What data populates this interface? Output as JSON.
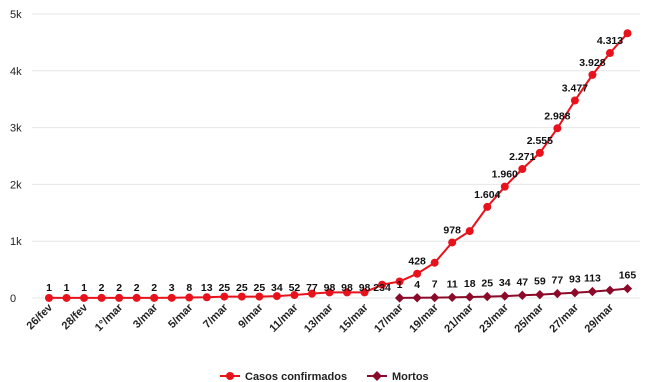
{
  "chart_data": {
    "type": "line",
    "title": "",
    "xlabel": "",
    "ylabel": "",
    "ylim": [
      0,
      5000
    ],
    "yticks": [
      {
        "value": 0,
        "label": "0"
      },
      {
        "value": 1000,
        "label": "1k"
      },
      {
        "value": 2000,
        "label": "2k"
      },
      {
        "value": 3000,
        "label": "3k"
      },
      {
        "value": 4000,
        "label": "4k"
      },
      {
        "value": 5000,
        "label": "5k"
      }
    ],
    "legend_position": "bottom",
    "grid": true,
    "x": [
      "26/fev",
      "27/fev",
      "28/fev",
      "29/fev",
      "1°/mar",
      "2/mar",
      "3/mar",
      "4/mar",
      "5/mar",
      "6/mar",
      "7/mar",
      "8/mar",
      "9/mar",
      "10/mar",
      "11/mar",
      "12/mar",
      "13/mar",
      "14/mar",
      "15/mar",
      "16/mar",
      "17/mar",
      "18/mar",
      "19/mar",
      "20/mar",
      "21/mar",
      "22/mar",
      "23/mar",
      "24/mar",
      "25/mar",
      "26/mar",
      "27/mar",
      "28/mar",
      "29/mar",
      "30/mar"
    ],
    "x_tick_labels": [
      "26/fev",
      "28/fev",
      "1°/mar",
      "3/mar",
      "5/mar",
      "7/mar",
      "9/mar",
      "11/mar",
      "13/mar",
      "15/mar",
      "17/mar",
      "19/mar",
      "21/mar",
      "23/mar",
      "25/mar",
      "27/mar",
      "29/mar"
    ],
    "series": [
      {
        "name": "Casos confirmados",
        "color": "#e8121c",
        "marker": "circle",
        "values": [
          1,
          1,
          1,
          2,
          2,
          2,
          2,
          3,
          8,
          13,
          25,
          25,
          25,
          34,
          52,
          77,
          98,
          98,
          98,
          234,
          291,
          428,
          621,
          978,
          1178,
          1604,
          1960,
          2271,
          2555,
          2988,
          3477,
          3928,
          4313,
          4661
        ],
        "data_labels": [
          "1",
          "1",
          "1",
          "2",
          "2",
          "2",
          "2",
          "3",
          "8",
          "13",
          "25",
          "25",
          "25",
          "34",
          "52",
          "77",
          "98",
          "98",
          "98",
          "234",
          "",
          "428",
          "",
          "978",
          "",
          "1.604",
          "1.960",
          "2.271",
          "2.555",
          "2.988",
          "3.477",
          "3.928",
          "4.313",
          ""
        ]
      },
      {
        "name": "Mortos",
        "color": "#8b0a2a",
        "marker": "diamond",
        "values": [
          null,
          null,
          null,
          null,
          null,
          null,
          null,
          null,
          null,
          null,
          null,
          null,
          null,
          null,
          null,
          null,
          null,
          null,
          null,
          null,
          1,
          4,
          7,
          11,
          18,
          25,
          34,
          47,
          59,
          77,
          93,
          113,
          136,
          165
        ],
        "data_labels": [
          "",
          "",
          "",
          "",
          "",
          "",
          "",
          "",
          "",
          "",
          "",
          "",
          "",
          "",
          "",
          "",
          "",
          "",
          "",
          "",
          "1",
          "4",
          "7",
          "11",
          "18",
          "25",
          "34",
          "47",
          "59",
          "77",
          "93",
          "113",
          "",
          "165"
        ]
      }
    ]
  }
}
